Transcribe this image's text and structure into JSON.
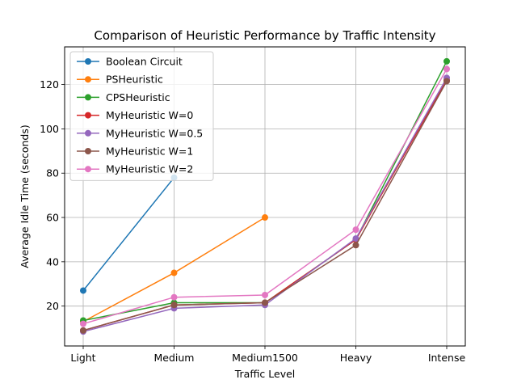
{
  "chart_data": {
    "type": "line",
    "title": "Comparison of Heuristic Performance by Traffic Intensity",
    "xlabel": "Traffic Level",
    "ylabel": "Average Idle Time (seconds)",
    "categories": [
      "Light",
      "Medium",
      "Medium1500",
      "Heavy",
      "Intense"
    ],
    "ylim": [
      2,
      137
    ],
    "yticks": [
      20,
      40,
      60,
      80,
      100,
      120
    ],
    "grid": true,
    "legend_position": "top-left",
    "series": [
      {
        "name": "Boolean Circuit",
        "color": "#1f77b4",
        "values": [
          27,
          78,
          null,
          null,
          null
        ]
      },
      {
        "name": "PSHeuristic",
        "color": "#ff7f0e",
        "values": [
          13,
          35,
          60,
          null,
          null
        ]
      },
      {
        "name": "CPSHeuristic",
        "color": "#2ca02c",
        "values": [
          13.5,
          21.5,
          21.5,
          50,
          130.5
        ]
      },
      {
        "name": "MyHeuristic W=0",
        "color": "#d62728",
        "values": [
          9,
          20.5,
          21.5,
          50,
          122
        ]
      },
      {
        "name": "MyHeuristic W=0.5",
        "color": "#9467bd",
        "values": [
          8.5,
          19,
          20.5,
          50.5,
          123
        ]
      },
      {
        "name": "MyHeuristic W=1",
        "color": "#8c564b",
        "values": [
          9,
          20.5,
          21.5,
          47.5,
          121.5
        ]
      },
      {
        "name": "MyHeuristic W=2",
        "color": "#e377c2",
        "values": [
          12,
          24,
          25,
          54.5,
          127
        ]
      }
    ]
  }
}
